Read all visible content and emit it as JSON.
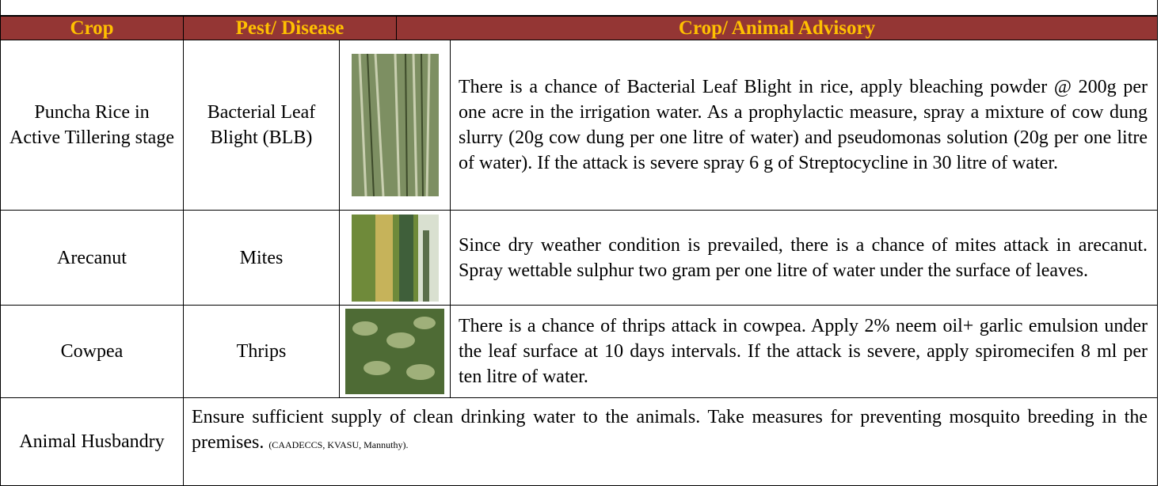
{
  "table": {
    "header": [
      "Crop",
      "Pest/ Disease",
      "Crop/ Animal Advisory"
    ],
    "rows": [
      {
        "crop": "Puncha Rice in Active Tillering stage",
        "pest": "Bacterial Leaf Blight (BLB)",
        "advisory": "There is a chance of Bacterial Leaf Blight in rice, apply bleaching powder @ 200g per one acre in the irrigation water. As a prophylactic measure, spray a mixture of cow dung slurry (20g cow dung per one litre of water) and pseudomonas solution (20g per one litre of water). If the attack is severe spray 6 g of Streptocycline in 30 litre of water."
      },
      {
        "crop": "Arecanut",
        "pest": "Mites",
        "advisory": "Since dry weather condition is prevailed, there is a chance of mites attack in arecanut. Spray wettable sulphur two gram per one litre of water under the surface of leaves."
      },
      {
        "crop": "Cowpea",
        "pest": "Thrips",
        "advisory": "There is a chance of thrips attack in cowpea. Apply 2% neem oil+ garlic emulsion under the leaf surface at 10 days intervals. If the attack is severe, apply spiromecifen 8 ml per ten litre of water."
      }
    ],
    "animal": {
      "label": "Animal Husbandry",
      "advisory": "Ensure sufficient supply of clean drinking water to the animals. Take measures for preventing mosquito breeding in the premises.",
      "source": "(CAADECCS, KVASU, Mannuthy)."
    }
  }
}
